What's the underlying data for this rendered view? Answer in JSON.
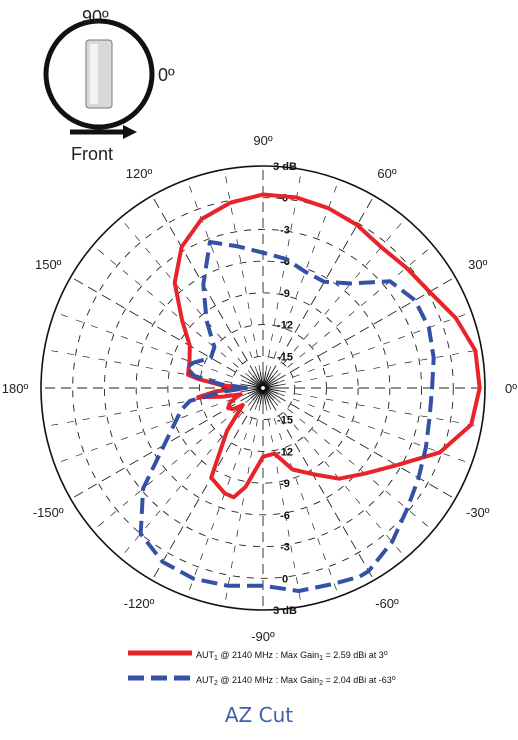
{
  "inset": {
    "label_top": "90º",
    "label_right": "0º",
    "label_bottom": "Front"
  },
  "chart_data": {
    "type": "polar-line",
    "title": "",
    "caption": "AZ Cut",
    "radial_unit_label": "3 dB",
    "radial_range": [
      -18,
      3
    ],
    "radial_ticks": [
      {
        "value": 3,
        "label": "3 dB"
      },
      {
        "value": 0,
        "label": "0"
      },
      {
        "value": -3,
        "label": "-3"
      },
      {
        "value": -6,
        "label": "-6"
      },
      {
        "value": -9,
        "label": "-9"
      },
      {
        "value": -12,
        "label": "-12"
      },
      {
        "value": -15,
        "label": "-15"
      }
    ],
    "angle_ticks": [
      {
        "deg": 0,
        "label": "0º"
      },
      {
        "deg": 30,
        "label": "30º"
      },
      {
        "deg": 60,
        "label": "60º"
      },
      {
        "deg": 90,
        "label": "90º"
      },
      {
        "deg": 120,
        "label": "120º"
      },
      {
        "deg": 150,
        "label": "150º"
      },
      {
        "deg": 180,
        "label": "180º"
      },
      {
        "deg": -150,
        "label": "-150º"
      },
      {
        "deg": -120,
        "label": "-120º"
      },
      {
        "deg": -90,
        "label": "-90º"
      },
      {
        "deg": -60,
        "label": "-60º"
      },
      {
        "deg": -30,
        "label": "-30º"
      }
    ],
    "series": [
      {
        "name": "AUT1 @ 2140 MHz : Max Gain1 = 2.59 dBi at 3º",
        "legend_parts": [
          "AUT",
          "1",
          " @ 2140 MHz : Max Gain",
          "1",
          " = 2.59 dBi at 3",
          "o"
        ],
        "color": "#e8232a",
        "dash": "solid",
        "angles": [
          0,
          10,
          20,
          30,
          40,
          50,
          60,
          70,
          80,
          90,
          100,
          110,
          120,
          130,
          140,
          150,
          160,
          170,
          172,
          176,
          180,
          184,
          188,
          192,
          196,
          200,
          205,
          210,
          215,
          220,
          230,
          240,
          250,
          255,
          260,
          270,
          280,
          290,
          300,
          310,
          320,
          330,
          340,
          350
        ],
        "values": [
          2.5,
          2.4,
          1.4,
          0.2,
          -0.3,
          -0.6,
          -0.2,
          0.1,
          0.3,
          0.3,
          -0.2,
          -1.0,
          -2.6,
          -5.0,
          -8.0,
          -10.0,
          -10.6,
          -10.8,
          -11.8,
          -14.0,
          -16.4,
          -13.6,
          -11.8,
          -14.0,
          -15.8,
          -15.2,
          -14.5,
          -14.2,
          -14.5,
          -15.5,
          -12.7,
          -8.2,
          -7.4,
          -7.3,
          -8.5,
          -11.5,
          -11.7,
          -9.8,
          -8.6,
          -6.8,
          -5.4,
          -3.4,
          -0.2,
          2.0
        ]
      },
      {
        "name": "AUT2 @ 2140 MHz : Max Gain2 = 2.04 dBi at -63º",
        "legend_parts": [
          "AUT",
          "2",
          " @ 2140 MHz : Max Gain",
          "2",
          " = 2.04 dBi at -63",
          "o"
        ],
        "color": "#3451a5",
        "dash": "dashed",
        "angles": [
          0,
          10,
          20,
          30,
          40,
          50,
          60,
          70,
          80,
          90,
          100,
          110,
          120,
          130,
          140,
          150,
          160,
          165,
          170,
          175,
          180,
          185,
          190,
          195,
          200,
          210,
          220,
          230,
          240,
          250,
          260,
          270,
          280,
          290,
          297,
          300,
          310,
          320,
          330,
          340,
          350
        ],
        "values": [
          -2.0,
          -1.6,
          -1.3,
          -1.4,
          -2.3,
          -5.1,
          -6.4,
          -6.3,
          -5.6,
          -5.2,
          -4.4,
          -3.3,
          -6.7,
          -9.7,
          -12.0,
          -12.3,
          -11.0,
          -10.5,
          -11.4,
          -14.0,
          -16.5,
          -14.5,
          -11.0,
          -10.0,
          -9.3,
          -7.2,
          -3.2,
          0.0,
          1.0,
          1.2,
          1.0,
          0.7,
          1.5,
          1.7,
          2.04,
          2.0,
          1.0,
          -0.2,
          -1.0,
          -1.6,
          -2.0
        ]
      }
    ]
  }
}
